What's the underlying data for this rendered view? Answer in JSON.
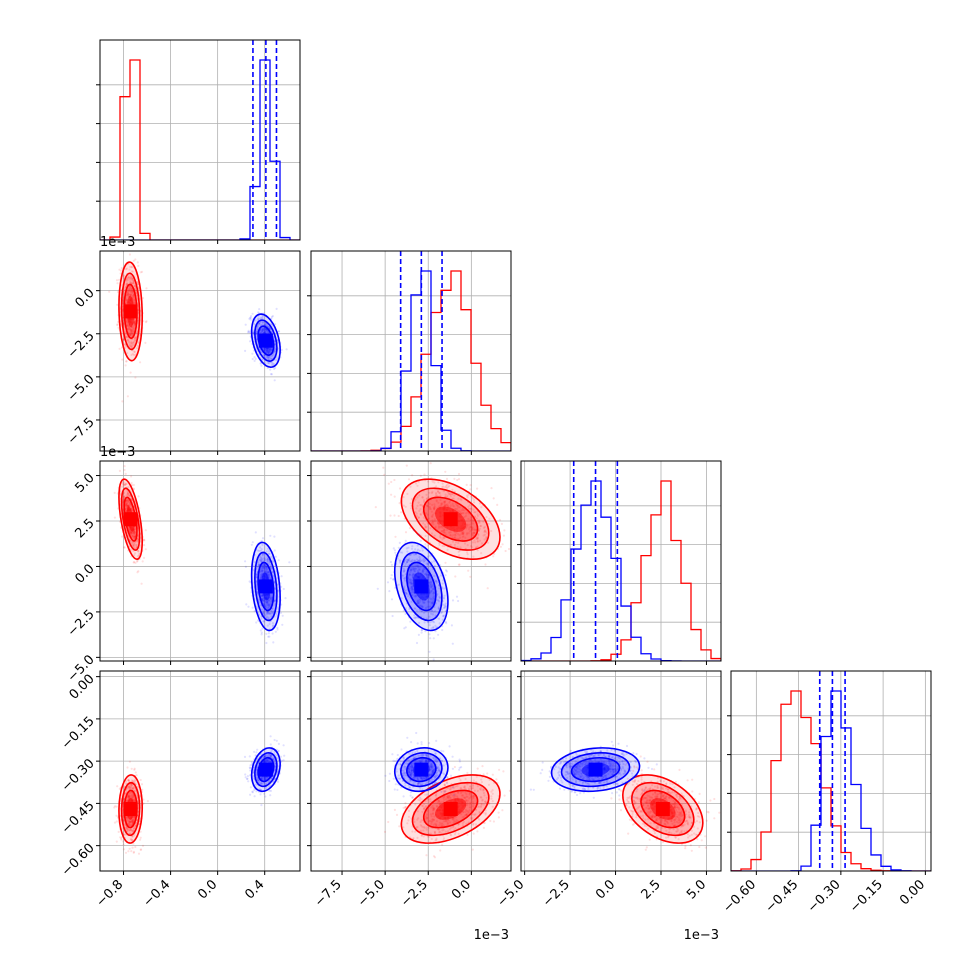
{
  "chart_data": {
    "type": "corner",
    "series": [
      {
        "color": "#ff0000"
      },
      {
        "color": "#0000ff"
      }
    ],
    "params": [
      {
        "range": [
          -1.0,
          0.7
        ],
        "ticks": [
          -0.8,
          -0.4,
          0.0,
          0.4
        ],
        "tick_labels": [
          "−0.8",
          "−0.4",
          "0.0",
          "0.4"
        ]
      },
      {
        "range": [
          -0.0093,
          0.0023
        ],
        "ticks": [
          -0.0075,
          -0.005,
          -0.0025,
          0.0
        ],
        "tick_labels": [
          "−7.5",
          "−5.0",
          "−2.5",
          "0.0"
        ],
        "offset_label": "1e−3"
      },
      {
        "range": [
          -0.0052,
          0.0058
        ],
        "ticks": [
          -0.005,
          -0.0025,
          0.0,
          0.0025,
          0.005
        ],
        "tick_labels": [
          "−5.0",
          "−2.5",
          "0.0",
          "2.5",
          "5.0"
        ],
        "offset_label": "1e−3"
      },
      {
        "range": [
          -0.69,
          0.02
        ],
        "ticks": [
          -0.6,
          -0.45,
          -0.3,
          -0.15,
          0.0
        ],
        "tick_labels": [
          "−0.60",
          "−0.45",
          "−0.30",
          "−0.15",
          "0.00"
        ]
      }
    ],
    "posterior": {
      "red": {
        "mean": [
          -0.74,
          -0.0012,
          0.0026,
          -0.47
        ],
        "sd": [
          0.045,
          0.0013,
          0.001,
          0.055
        ]
      },
      "blue": {
        "mean": [
          0.41,
          -0.0029,
          -0.0011,
          -0.33
        ],
        "sd": [
          0.055,
          0.0007,
          0.0011,
          0.035
        ]
      }
    },
    "quantile_lines": {
      "color": "#0000ff",
      "diag_0": [
        0.3,
        0.41,
        0.5
      ],
      "diag_1": [
        -0.0041,
        -0.0029,
        -0.0017
      ],
      "diag_2": [
        -0.0023,
        -0.0011,
        0.0001
      ],
      "diag_3": [
        -0.375,
        -0.33,
        -0.285
      ]
    }
  }
}
